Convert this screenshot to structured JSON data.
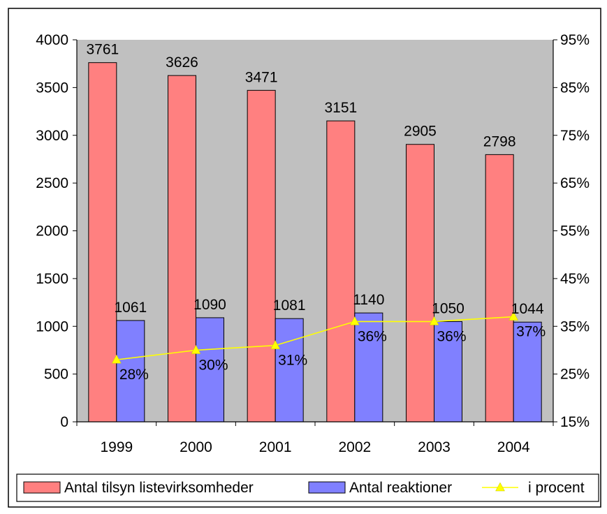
{
  "chart_data": {
    "type": "bar",
    "categories": [
      "1999",
      "2000",
      "2001",
      "2002",
      "2003",
      "2004"
    ],
    "series": [
      {
        "name": "Antal tilsyn listevirksomheder",
        "kind": "bar",
        "axis": "left",
        "color": "#ff8080",
        "values": [
          3761,
          3626,
          3471,
          3151,
          2905,
          2798
        ],
        "labels": [
          "3761",
          "3626",
          "3471",
          "3151",
          "2905",
          "2798"
        ]
      },
      {
        "name": "Antal reaktioner",
        "kind": "bar",
        "axis": "left",
        "color": "#8080ff",
        "values": [
          1061,
          1090,
          1081,
          1140,
          1050,
          1044
        ],
        "labels": [
          "1061",
          "1090",
          "1081",
          "1140",
          "1050",
          "1044"
        ]
      },
      {
        "name": "i procent",
        "kind": "line",
        "axis": "right",
        "color": "#ffff00",
        "marker": "triangle",
        "values": [
          28,
          30,
          31,
          36,
          36,
          37
        ],
        "labels": [
          "28%",
          "30%",
          "31%",
          "36%",
          "36%",
          "37%"
        ]
      }
    ],
    "y_left": {
      "min": 0,
      "max": 4000,
      "ticks": [
        "0",
        "500",
        "1000",
        "1500",
        "2000",
        "2500",
        "3000",
        "3500",
        "4000"
      ]
    },
    "y_right": {
      "min": 15,
      "max": 95,
      "ticks": [
        "15%",
        "25%",
        "35%",
        "45%",
        "55%",
        "65%",
        "75%",
        "85%",
        "95%"
      ]
    },
    "plot_background": "#c0c0c0",
    "grid": false,
    "legend_position": "bottom"
  }
}
